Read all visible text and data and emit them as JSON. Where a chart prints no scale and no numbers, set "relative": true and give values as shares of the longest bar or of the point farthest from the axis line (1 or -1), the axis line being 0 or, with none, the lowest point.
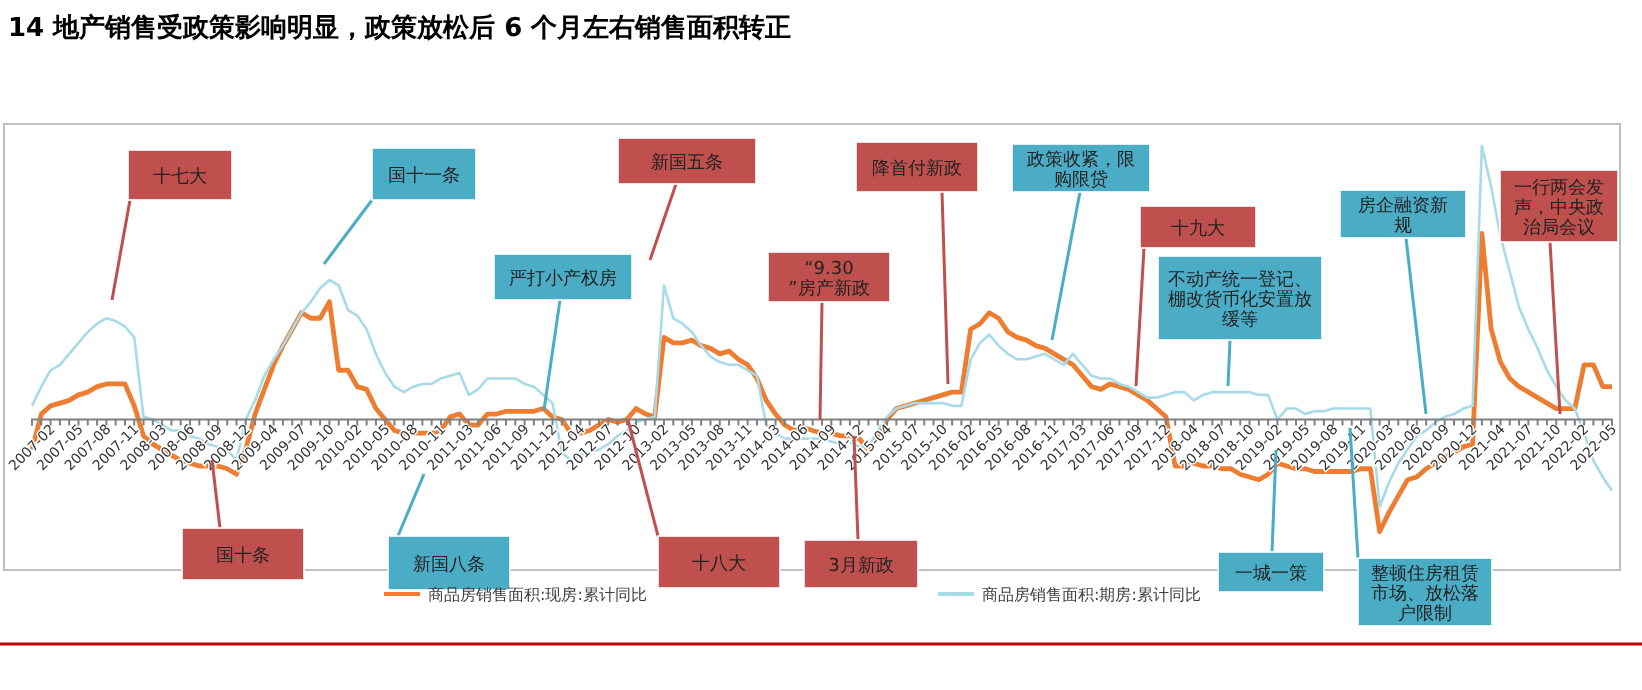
{
  "chart_data": {
    "type": "line",
    "relative": true,
    "title": "14  地产销售受政策影响明显，政策放松后 6 个月左右销售面积转正",
    "categories": [
      "2007-02",
      null,
      null,
      "2007-05",
      null,
      null,
      "2007-08",
      null,
      null,
      "2007-11",
      null,
      null,
      "2008-03",
      null,
      null,
      "2008-06",
      null,
      null,
      "2008-09",
      null,
      null,
      "2008-12",
      null,
      null,
      "2009-04",
      null,
      null,
      "2009-07",
      null,
      null,
      "2009-10",
      null,
      null,
      "2010-02",
      null,
      null,
      "2010-05",
      null,
      null,
      "2010-08",
      null,
      null,
      "2010-11",
      null,
      null,
      "2011-03",
      null,
      null,
      "2011-06",
      null,
      null,
      "2011-09",
      null,
      null,
      "2011-12",
      null,
      null,
      "2012-04",
      null,
      null,
      "2012-07",
      null,
      null,
      "2012-10",
      null,
      null,
      "2013-02",
      null,
      null,
      "2013-05",
      null,
      null,
      "2013-08",
      null,
      null,
      "2013-11",
      null,
      null,
      "2014-03",
      null,
      null,
      "2014-06",
      null,
      null,
      "2014-09",
      null,
      null,
      "2014-12",
      null,
      null,
      "2015-04",
      null,
      null,
      "2015-07",
      null,
      null,
      "2015-10",
      null,
      null,
      "2016-02",
      null,
      null,
      "2016-05",
      null,
      null,
      "2016-08",
      null,
      null,
      "2016-11",
      null,
      null,
      "2017-03",
      null,
      null,
      "2017-06",
      null,
      null,
      "2017-09",
      null,
      null,
      "2017-12",
      null,
      null,
      "2018-04",
      null,
      null,
      "2018-07",
      null,
      null,
      "2018-10",
      null,
      null,
      "2019-02",
      null,
      null,
      "2019-05",
      null,
      null,
      "2019-08",
      null,
      null,
      "2019-11",
      null,
      null,
      "2020-03",
      null,
      null,
      "2020-06",
      null,
      null,
      "2020-09",
      null,
      null,
      "2020-12",
      null,
      null,
      "2021-04",
      null,
      null,
      "2021-07",
      null,
      null,
      "2021-10",
      null,
      null,
      "2022-02",
      null,
      null,
      "2022-05",
      null,
      null
    ],
    "series": [
      {
        "name": "商品房销售面积:现房:累计同比",
        "color": "#ed7d31",
        "values": [
          -0.11,
          0.02,
          0.05,
          0.06,
          0.07,
          0.09,
          0.1,
          0.12,
          0.13,
          0.13,
          0.13,
          0.05,
          -0.06,
          -0.09,
          -0.11,
          -0.13,
          -0.15,
          -0.16,
          -0.17,
          -0.17,
          -0.17,
          -0.18,
          -0.2,
          -0.11,
          0.02,
          0.11,
          0.2,
          0.27,
          0.33,
          0.39,
          0.37,
          0.37,
          0.43,
          0.18,
          0.18,
          0.12,
          0.11,
          0.04,
          0,
          -0.04,
          -0.05,
          -0.05,
          -0.05,
          -0.05,
          -0.04,
          0.01,
          0.02,
          -0.02,
          -0.02,
          0.02,
          0.02,
          0.03,
          0.03,
          0.03,
          0.03,
          0.04,
          0.01,
          0,
          -0.05,
          -0.05,
          -0.04,
          -0.02,
          0,
          -0.01,
          0,
          0.04,
          0.02,
          0.01,
          0.3,
          0.28,
          0.28,
          0.29,
          0.27,
          0.26,
          0.24,
          0.25,
          0.22,
          0.2,
          0.15,
          0.07,
          0.02,
          -0.02,
          -0.04,
          -0.03,
          -0.04,
          -0.05,
          -0.05,
          -0.06,
          -0.06,
          -0.07,
          -0.11,
          -0.06,
          0,
          0.04,
          0.05,
          0.06,
          0.07,
          0.08,
          0.09,
          0.1,
          0.1,
          0.33,
          0.35,
          0.39,
          0.37,
          0.32,
          0.3,
          0.29,
          0.27,
          0.26,
          0.24,
          0.22,
          0.2,
          0.16,
          0.12,
          0.11,
          0.13,
          0.12,
          0.11,
          0.09,
          0.07,
          0.04,
          0.01,
          -0.17,
          -0.17,
          -0.16,
          -0.17,
          -0.17,
          -0.18,
          -0.18,
          -0.2,
          -0.21,
          -0.22,
          -0.2,
          -0.16,
          -0.17,
          -0.18,
          -0.18,
          -0.19,
          -0.19,
          -0.19,
          -0.19,
          -0.19,
          -0.18,
          -0.18,
          -0.41,
          -0.34,
          -0.28,
          -0.22,
          -0.21,
          -0.18,
          -0.16,
          -0.14,
          -0.12,
          -0.1,
          -0.09,
          0.68,
          0.33,
          0.21,
          0.15,
          0.12,
          0.1,
          0.08,
          0.06,
          0.04,
          0.04,
          0.04,
          0.2,
          0.2,
          0.12,
          0.12
        ]
      },
      {
        "name": "商品房销售面积:期房:累计同比",
        "color": "#a8dbe8",
        "values": [
          0.05,
          0.12,
          0.18,
          0.2,
          0.24,
          0.28,
          0.32,
          0.35,
          0.37,
          0.36,
          0.34,
          0.3,
          0.01,
          0,
          -0.02,
          -0.04,
          -0.04,
          -0.06,
          -0.07,
          -0.09,
          -0.1,
          -0.11,
          -0.15,
          0,
          0.07,
          0.16,
          0.22,
          0.27,
          0.33,
          0.39,
          0.43,
          0.48,
          0.51,
          0.49,
          0.4,
          0.38,
          0.33,
          0.24,
          0.17,
          0.12,
          0.1,
          0.12,
          0.13,
          0.13,
          0.15,
          0.16,
          0.17,
          0.09,
          0.11,
          0.15,
          0.15,
          0.15,
          0.15,
          0.13,
          0.12,
          0.09,
          0.06,
          -0.12,
          -0.15,
          -0.13,
          -0.12,
          -0.11,
          -0.09,
          -0.06,
          -0.04,
          -0.01,
          0,
          0.01,
          0.49,
          0.37,
          0.35,
          0.32,
          0.27,
          0.23,
          0.21,
          0.2,
          0.2,
          0.18,
          0.16,
          -0.02,
          -0.05,
          -0.07,
          -0.07,
          -0.07,
          -0.07,
          -0.07,
          -0.08,
          -0.09,
          -0.08,
          -0.1,
          -0.1,
          -0.04,
          0.01,
          0.04,
          0.05,
          0.06,
          0.06,
          0.06,
          0.06,
          0.05,
          0.05,
          0.22,
          0.28,
          0.31,
          0.27,
          0.24,
          0.22,
          0.22,
          0.23,
          0.24,
          0.22,
          0.2,
          0.24,
          0.2,
          0.16,
          0.15,
          0.15,
          0.13,
          0.12,
          0.1,
          0.08,
          0.08,
          0.09,
          0.1,
          0.1,
          0.07,
          0.09,
          0.1,
          0.1,
          0.1,
          0.1,
          0.1,
          0.09,
          0.09,
          0,
          0.04,
          0.04,
          0.02,
          0.03,
          0.03,
          0.04,
          0.04,
          0.04,
          0.04,
          0.04,
          -0.32,
          -0.23,
          -0.16,
          -0.11,
          -0.06,
          -0.04,
          -0.01,
          0.01,
          0.02,
          0.04,
          0.05,
          1,
          0.85,
          0.67,
          0.54,
          0.41,
          0.33,
          0.26,
          0.18,
          0.12,
          0.07,
          0.04,
          -0.05,
          -0.15,
          -0.21,
          -0.26
        ]
      }
    ],
    "legend": "bottom",
    "grid": false,
    "marker": "none",
    "line_style": "solid",
    "annotations": [
      "十七大",
      "国十一条",
      "新国五条",
      "严打小产权房",
      "“9.30”房产新政",
      "降首付新政",
      "政策收紧，限购限贷",
      "十九大",
      "不动产统一登记、棚改货币化安置放缓等",
      "房企融资新规",
      "一行两会发声，中央政治局会议",
      "国十条",
      "新国八条",
      "十八大",
      "3月新政",
      "一城一策",
      "整顿住房租赁市场、放松落户限制"
    ]
  }
}
